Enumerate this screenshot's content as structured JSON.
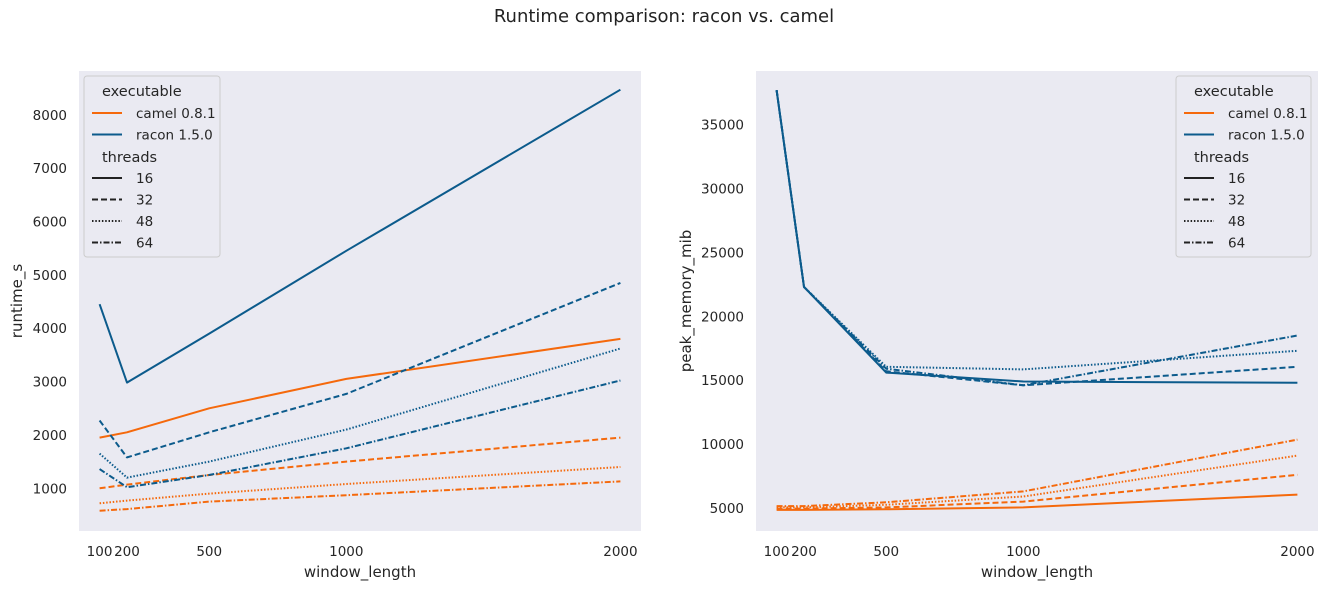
{
  "title": "Runtime comparison: racon vs. camel",
  "colors": {
    "camel 0.8.1": "#f5690c",
    "racon 1.5.0": "#0c5b8c",
    "plot_bg": "#eaeaf2",
    "legend_line": "#222222"
  },
  "dash_styles": {
    "16": "",
    "32": "6,3",
    "48": "1.5,1.8",
    "64": "6,2,1.5,2"
  },
  "chart_data": [
    {
      "type": "line",
      "xlabel": "window_length",
      "ylabel": "runtime_s",
      "x": [
        100,
        200,
        500,
        1000,
        2000
      ],
      "xticks": [
        100,
        200,
        500,
        1000,
        2000
      ],
      "xlim": [
        25,
        2075
      ],
      "yticks": [
        1000,
        2000,
        3000,
        4000,
        5000,
        6000,
        7000,
        8000
      ],
      "ylim": [
        200,
        8820
      ],
      "grid": false,
      "legend": {
        "placement": "upper left",
        "hue_title": "executable",
        "hue_entries": [
          "camel 0.8.1",
          "racon 1.5.0"
        ],
        "style_title": "threads",
        "style_entries": [
          "16",
          "32",
          "48",
          "64"
        ]
      },
      "series": [
        {
          "executable": "camel 0.8.1",
          "threads": "16",
          "values": [
            1950,
            2050,
            2500,
            3050,
            3800
          ]
        },
        {
          "executable": "camel 0.8.1",
          "threads": "32",
          "values": [
            1000,
            1070,
            1250,
            1500,
            1950
          ]
        },
        {
          "executable": "camel 0.8.1",
          "threads": "48",
          "values": [
            720,
            770,
            900,
            1080,
            1400
          ]
        },
        {
          "executable": "camel 0.8.1",
          "threads": "64",
          "values": [
            580,
            610,
            750,
            870,
            1130
          ]
        },
        {
          "executable": "racon 1.5.0",
          "threads": "16",
          "values": [
            4450,
            2980,
            3900,
            5450,
            8470
          ]
        },
        {
          "executable": "racon 1.5.0",
          "threads": "32",
          "values": [
            2270,
            1580,
            2050,
            2770,
            4850
          ]
        },
        {
          "executable": "racon 1.5.0",
          "threads": "48",
          "values": [
            1650,
            1200,
            1500,
            2100,
            3620
          ]
        },
        {
          "executable": "racon 1.5.0",
          "threads": "64",
          "values": [
            1360,
            1020,
            1250,
            1750,
            3020
          ]
        }
      ]
    },
    {
      "type": "line",
      "xlabel": "window_length",
      "ylabel": "peak_memory_mib",
      "x": [
        100,
        200,
        500,
        1000,
        2000
      ],
      "xticks": [
        100,
        200,
        500,
        1000,
        2000
      ],
      "xlim": [
        25,
        2075
      ],
      "yticks": [
        5000,
        10000,
        15000,
        20000,
        25000,
        30000,
        35000
      ],
      "ylim": [
        3200,
        39200
      ],
      "grid": false,
      "legend": {
        "placement": "upper right",
        "hue_title": "executable",
        "hue_entries": [
          "camel 0.8.1",
          "racon 1.5.0"
        ],
        "style_title": "threads",
        "style_entries": [
          "16",
          "32",
          "48",
          "64"
        ]
      },
      "series": [
        {
          "executable": "camel 0.8.1",
          "threads": "16",
          "values": [
            4850,
            4850,
            4900,
            5050,
            6050
          ]
        },
        {
          "executable": "camel 0.8.1",
          "threads": "32",
          "values": [
            4950,
            4950,
            5050,
            5500,
            7600
          ]
        },
        {
          "executable": "camel 0.8.1",
          "threads": "48",
          "values": [
            5050,
            5050,
            5250,
            5900,
            9100
          ]
        },
        {
          "executable": "camel 0.8.1",
          "threads": "64",
          "values": [
            5150,
            5150,
            5450,
            6300,
            10350
          ]
        },
        {
          "executable": "racon 1.5.0",
          "threads": "16",
          "values": [
            37700,
            22300,
            15600,
            14900,
            14800
          ]
        },
        {
          "executable": "racon 1.5.0",
          "threads": "32",
          "values": [
            37700,
            22300,
            15700,
            14600,
            16050
          ]
        },
        {
          "executable": "racon 1.5.0",
          "threads": "48",
          "values": [
            37700,
            22300,
            16050,
            15850,
            17300
          ]
        },
        {
          "executable": "racon 1.5.0",
          "threads": "64",
          "values": [
            37700,
            22300,
            15900,
            14600,
            18500
          ]
        }
      ]
    }
  ]
}
